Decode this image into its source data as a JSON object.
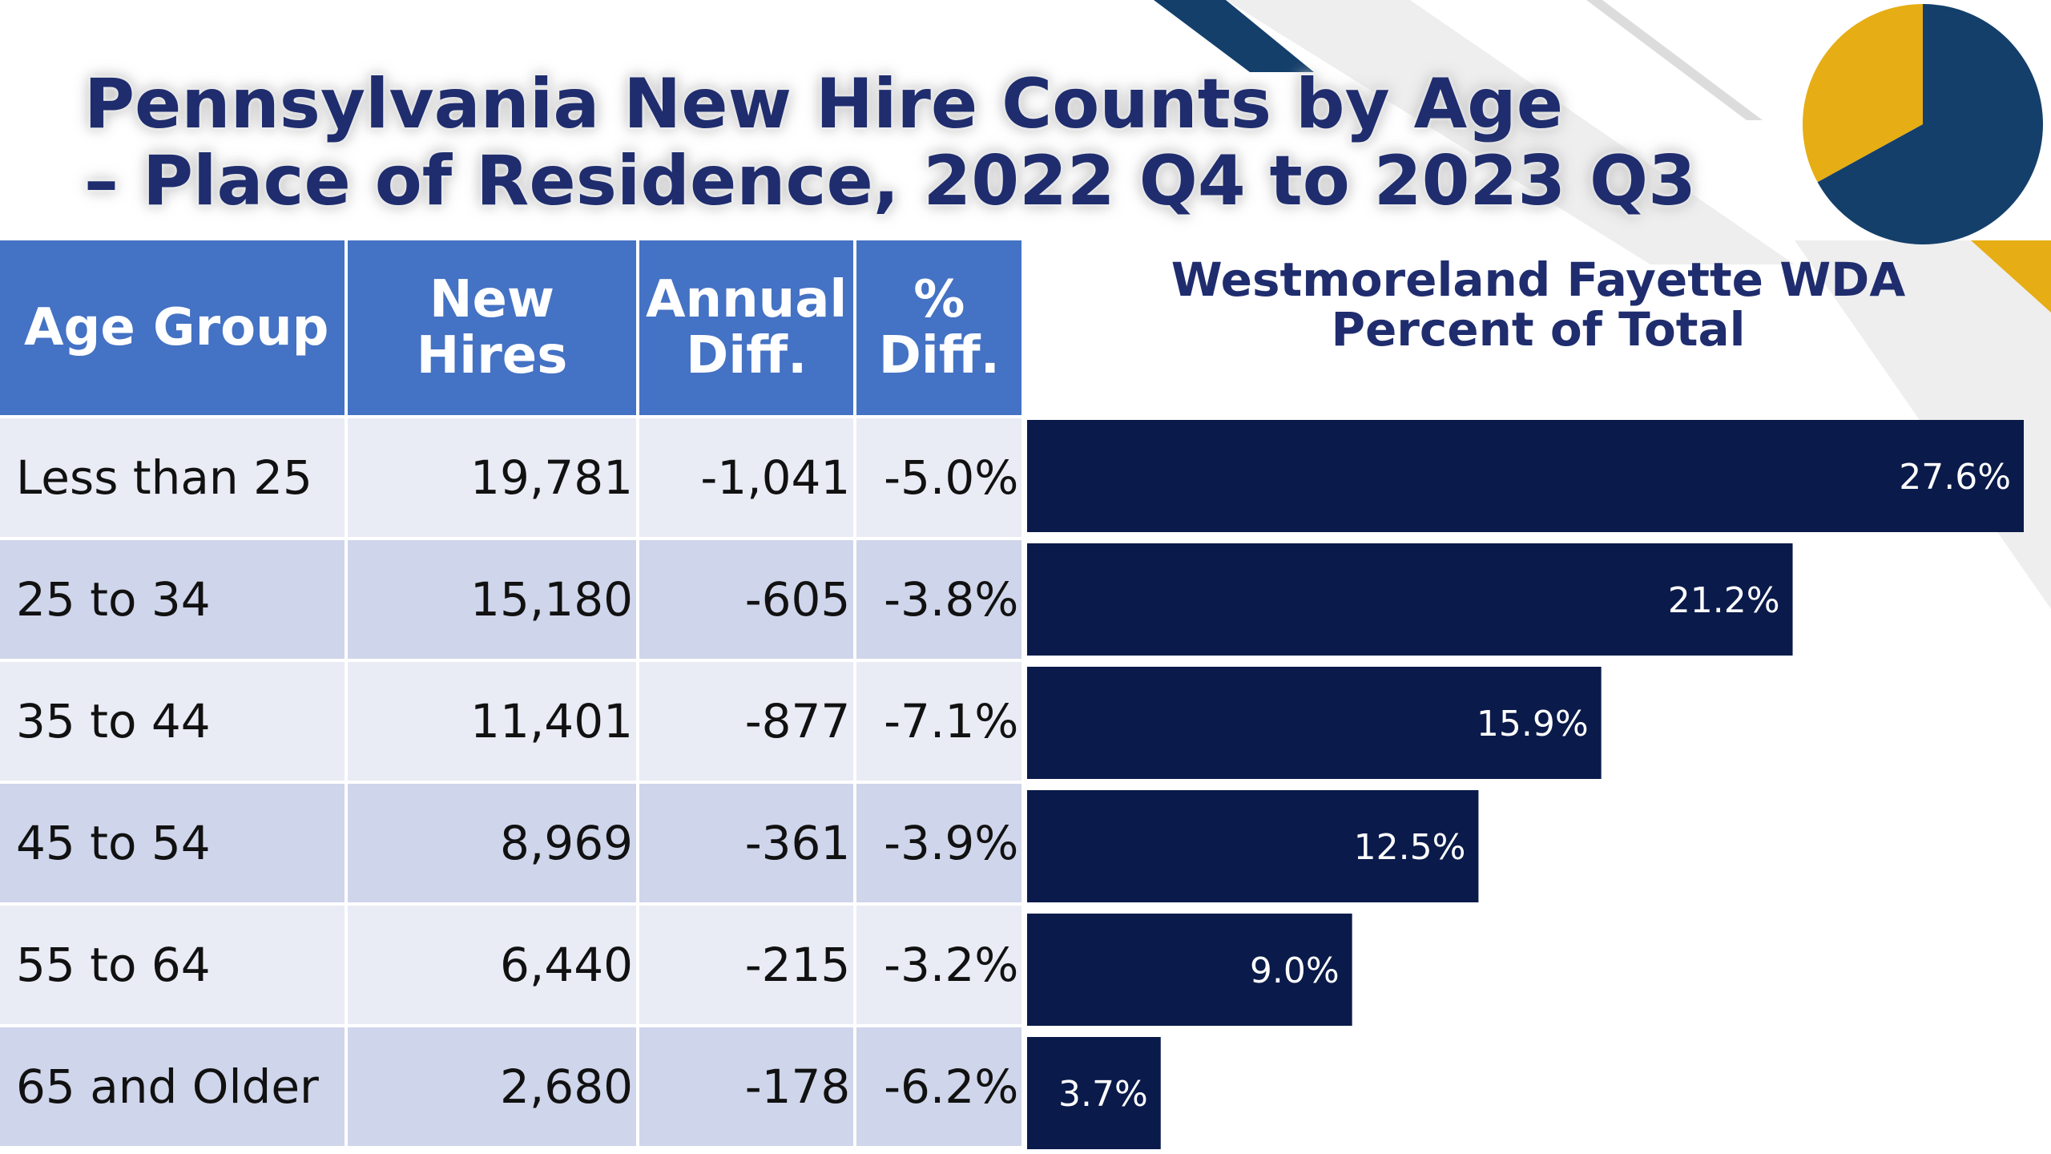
{
  "title": {
    "line1": "Pennsylvania New Hire Counts by Age",
    "line2": "– Place of Residence, 2022 Q4 to 2023 Q3"
  },
  "colors": {
    "navy": "#0a1a4a",
    "header_blue": "#4472c4",
    "gold": "#e6ad14",
    "pie_navy": "#143f6b",
    "title_navy": "#1f2d6e",
    "row_light": "#e9ebf5",
    "row_dark": "#cfd5ea"
  },
  "pie_decoration": {
    "slices": [
      0.67,
      0.33
    ],
    "colors": [
      "#143f6b",
      "#e6ad14"
    ]
  },
  "table": {
    "headers": {
      "age_group": "Age Group",
      "new_hires_1": "New",
      "new_hires_2": "Hires",
      "annual_1": "Annual",
      "annual_2": "Diff.",
      "pct_1": "%",
      "pct_2": "Diff."
    },
    "rows": [
      {
        "age": "Less than 25",
        "hires": "19,781",
        "annual": "-1,041",
        "pct": "-5.0%"
      },
      {
        "age": "25 to 34",
        "hires": "15,180",
        "annual": "-605",
        "pct": "-3.8%"
      },
      {
        "age": "35 to 44",
        "hires": "11,401",
        "annual": "-877",
        "pct": "-7.1%"
      },
      {
        "age": "45 to 54",
        "hires": "8,969",
        "annual": "-361",
        "pct": "-3.9%"
      },
      {
        "age": "55 to 64",
        "hires": "6,440",
        "annual": "-215",
        "pct": "-3.2%"
      },
      {
        "age": "65 and Older",
        "hires": "2,680",
        "annual": "-178",
        "pct": "-6.2%"
      }
    ]
  },
  "chart_data": {
    "type": "bar",
    "orientation": "horizontal",
    "title": "Westmoreland Fayette WDA Percent of Total",
    "title_line1": "Westmoreland Fayette WDA",
    "title_line2": "Percent of Total",
    "categories": [
      "Less than 25",
      "25 to 34",
      "35 to 44",
      "45 to 54",
      "55 to 64",
      "65 and Older"
    ],
    "values": [
      27.6,
      21.2,
      15.9,
      12.5,
      9.0,
      3.7
    ],
    "labels": [
      "27.6%",
      "21.2%",
      "15.9%",
      "12.5%",
      "9.0%",
      "3.7%"
    ],
    "xlim": [
      0,
      27.6
    ],
    "bar_color": "#0a1a4a",
    "label_color": "#ffffff",
    "grid": false
  }
}
